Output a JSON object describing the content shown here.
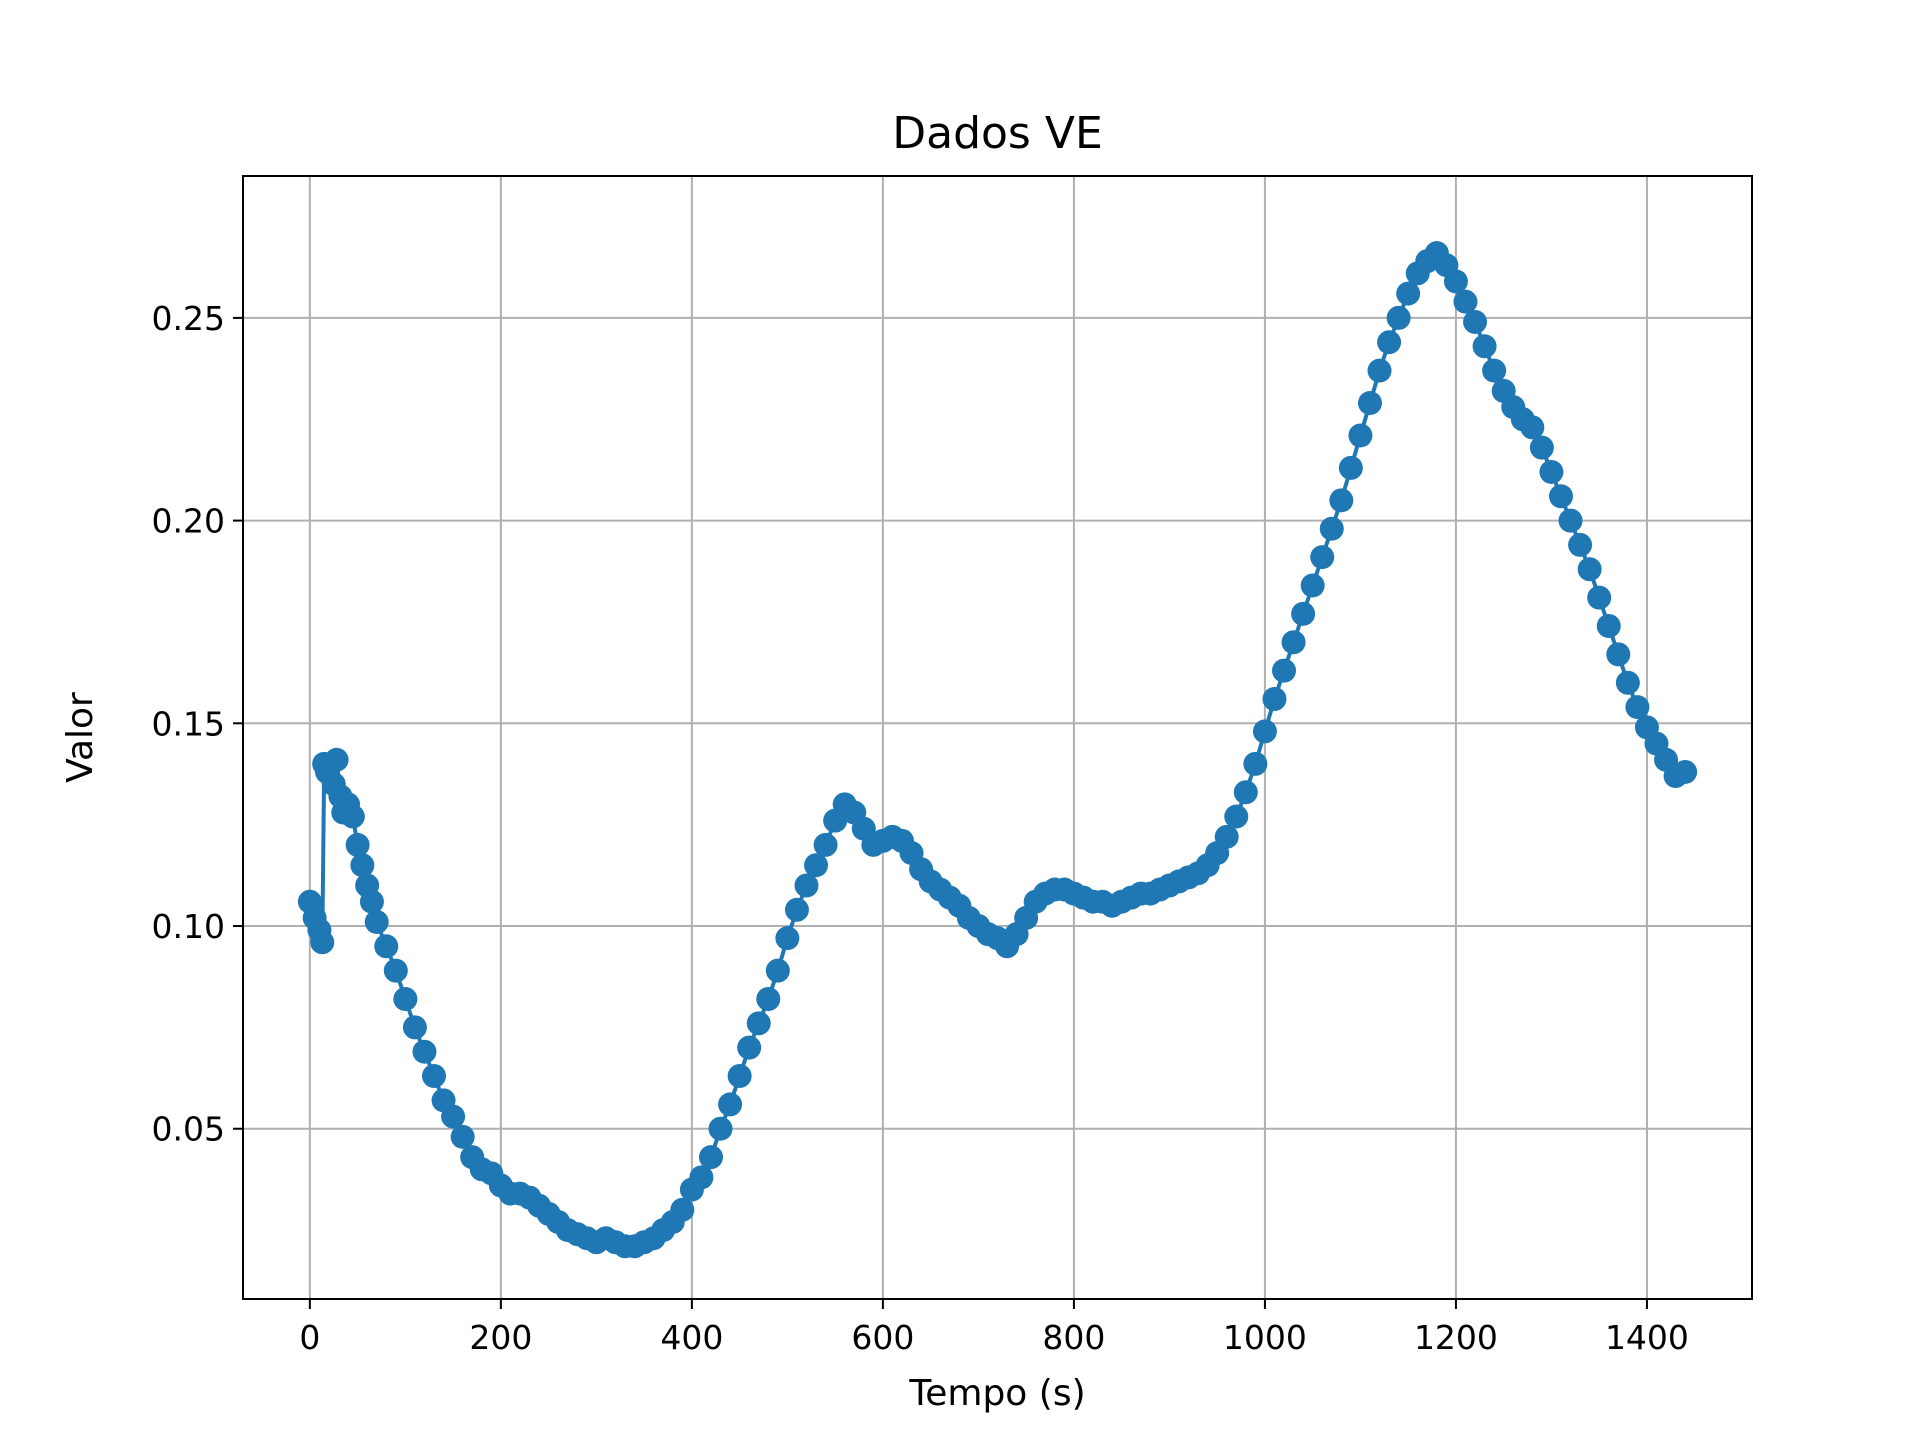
{
  "chart_data": {
    "type": "line",
    "title": "Dados VE",
    "xlabel": "Tempo (s)",
    "ylabel": "Valor",
    "xlim": [
      -70,
      1510
    ],
    "ylim": [
      0.008,
      0.285
    ],
    "xticks": [
      0,
      200,
      400,
      600,
      800,
      1000,
      1200,
      1400
    ],
    "yticks": [
      0.05,
      0.1,
      0.15,
      0.2,
      0.25
    ],
    "ytick_labels": [
      "0.05",
      "0.10",
      "0.15",
      "0.20",
      "0.25"
    ],
    "grid": true,
    "colors": {
      "series": "#1f77b4"
    },
    "series": [
      {
        "marker": "circle",
        "x": [
          0,
          5,
          10,
          13,
          15,
          18,
          22,
          25,
          28,
          32,
          35,
          40,
          45,
          50,
          55,
          60,
          65,
          70,
          80,
          90,
          100,
          110,
          120,
          130,
          140,
          150,
          160,
          170,
          180,
          190,
          200,
          210,
          220,
          230,
          240,
          250,
          260,
          270,
          280,
          290,
          300,
          310,
          320,
          330,
          340,
          350,
          360,
          370,
          380,
          390,
          400,
          410,
          420,
          430,
          440,
          450,
          460,
          470,
          480,
          490,
          500,
          510,
          520,
          530,
          540,
          550,
          560,
          570,
          580,
          590,
          600,
          610,
          620,
          630,
          640,
          650,
          660,
          670,
          680,
          690,
          700,
          710,
          720,
          730,
          740,
          750,
          760,
          770,
          780,
          790,
          800,
          810,
          820,
          830,
          840,
          850,
          860,
          870,
          880,
          890,
          900,
          910,
          920,
          930,
          940,
          950,
          960,
          970,
          980,
          990,
          1000,
          1010,
          1020,
          1030,
          1040,
          1050,
          1060,
          1070,
          1080,
          1090,
          1100,
          1110,
          1120,
          1130,
          1140,
          1150,
          1160,
          1170,
          1180,
          1190,
          1200,
          1210,
          1220,
          1230,
          1240,
          1250,
          1260,
          1270,
          1280,
          1290,
          1300,
          1310,
          1320,
          1330,
          1340,
          1350,
          1360,
          1370,
          1380,
          1390,
          1400,
          1410,
          1420,
          1430,
          1440
        ],
        "y": [
          0.106,
          0.102,
          0.099,
          0.096,
          0.14,
          0.138,
          0.14,
          0.135,
          0.141,
          0.132,
          0.128,
          0.13,
          0.127,
          0.12,
          0.115,
          0.11,
          0.106,
          0.101,
          0.095,
          0.089,
          0.082,
          0.075,
          0.069,
          0.063,
          0.057,
          0.053,
          0.048,
          0.043,
          0.04,
          0.039,
          0.036,
          0.034,
          0.034,
          0.033,
          0.031,
          0.029,
          0.027,
          0.025,
          0.024,
          0.023,
          0.022,
          0.023,
          0.022,
          0.021,
          0.021,
          0.022,
          0.023,
          0.025,
          0.027,
          0.03,
          0.035,
          0.038,
          0.043,
          0.05,
          0.056,
          0.063,
          0.07,
          0.076,
          0.082,
          0.089,
          0.097,
          0.104,
          0.11,
          0.115,
          0.12,
          0.126,
          0.13,
          0.128,
          0.124,
          0.12,
          0.121,
          0.122,
          0.121,
          0.118,
          0.114,
          0.111,
          0.109,
          0.107,
          0.105,
          0.102,
          0.1,
          0.098,
          0.097,
          0.095,
          0.098,
          0.102,
          0.106,
          0.108,
          0.109,
          0.109,
          0.108,
          0.107,
          0.106,
          0.106,
          0.105,
          0.106,
          0.107,
          0.108,
          0.108,
          0.109,
          0.11,
          0.111,
          0.112,
          0.113,
          0.115,
          0.118,
          0.122,
          0.127,
          0.133,
          0.14,
          0.148,
          0.156,
          0.163,
          0.17,
          0.177,
          0.184,
          0.191,
          0.198,
          0.205,
          0.213,
          0.221,
          0.229,
          0.237,
          0.244,
          0.25,
          0.256,
          0.261,
          0.264,
          0.266,
          0.263,
          0.259,
          0.254,
          0.249,
          0.243,
          0.237,
          0.232,
          0.228,
          0.225,
          0.223,
          0.218,
          0.212,
          0.206,
          0.2,
          0.194,
          0.188,
          0.181,
          0.174,
          0.167,
          0.16,
          0.154,
          0.149,
          0.145,
          0.141,
          0.137,
          0.138
        ]
      }
    ]
  }
}
